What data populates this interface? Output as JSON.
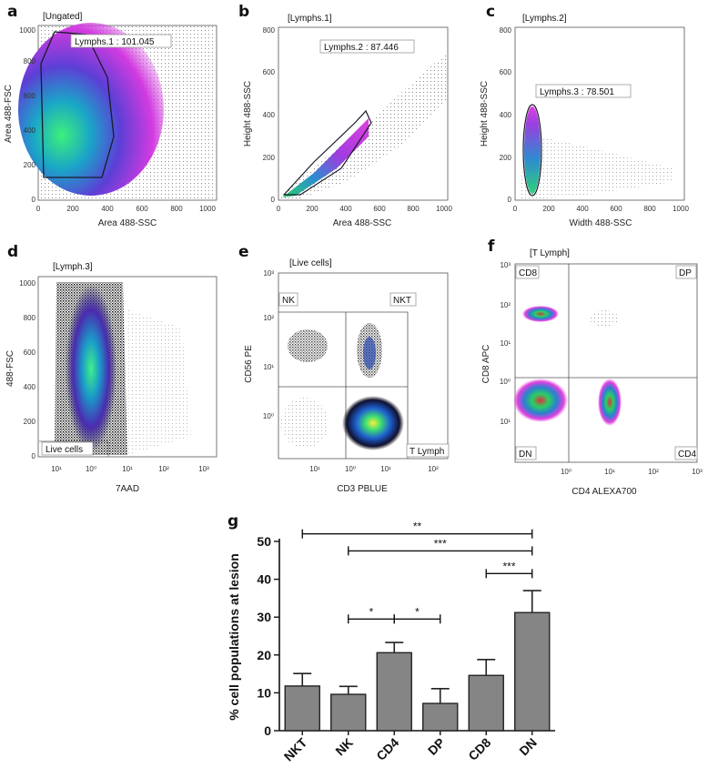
{
  "panels": {
    "a": {
      "letter": "a",
      "header": "[Ungated]",
      "gate_label": "Lymphs.1 : 101.045",
      "xlabel": "Area 488-SSC",
      "ylabel": "Area 488-FSC",
      "xticks": [
        "0",
        "200",
        "400",
        "600",
        "800",
        "1000"
      ],
      "yticks": [
        "0",
        "200",
        "400",
        "600",
        "800",
        "1000"
      ]
    },
    "b": {
      "letter": "b",
      "header": "[Lymphs.1]",
      "gate_label": "Lymphs.2 : 87.446",
      "xlabel": "Area 488-SSC",
      "ylabel": "Height 488-SSC",
      "xticks": [
        "0",
        "200",
        "400",
        "600",
        "800",
        "1000"
      ],
      "yticks": [
        "0",
        "200",
        "400",
        "600",
        "800"
      ]
    },
    "c": {
      "letter": "c",
      "header": "[Lymphs.2]",
      "gate_label": "Lymphs.3 : 78.501",
      "xlabel": "Width 488-SSC",
      "ylabel": "Height 488-SSC",
      "xticks": [
        "0",
        "200",
        "400",
        "600",
        "800",
        "1000"
      ],
      "yticks": [
        "0",
        "200",
        "400",
        "600",
        "800"
      ]
    },
    "d": {
      "letter": "d",
      "header": "[Lymph.3]",
      "gate_label": "Live cells",
      "xlabel": "7AAD",
      "ylabel": "488-FSC",
      "xticks": [
        "10¹",
        "10²",
        "10³"
      ],
      "xticks_left": [
        "10¹",
        "10⁰"
      ],
      "yticks": [
        "0",
        "200",
        "400",
        "600",
        "800",
        "1000"
      ]
    },
    "e": {
      "letter": "e",
      "header": "[Live cells]",
      "xlabel": "CD3 PBLUE",
      "ylabel": "CD56 PE",
      "quadrants": [
        "NK",
        "NKT",
        "T Lymph"
      ],
      "xticks": [
        "10¹",
        "10⁰",
        "10¹",
        "10²"
      ],
      "yticks": [
        "10³",
        "10²",
        "10¹",
        "10⁰"
      ]
    },
    "f": {
      "letter": "f",
      "header": "[T Lymph]",
      "xlabel": "CD4 ALEXA700",
      "ylabel": "CD8 APC",
      "quadrants": [
        "CD8",
        "DP",
        "DN",
        "CD4"
      ],
      "xticks": [
        "10⁰",
        "10¹",
        "10²",
        "10³"
      ],
      "yticks": [
        "10³",
        "10²",
        "10¹",
        "10⁰",
        "10¹"
      ]
    }
  },
  "chart_data": {
    "letter": "g",
    "type": "bar",
    "categories": [
      "NKT",
      "NK",
      "CD4",
      "DP",
      "CD8",
      "DN"
    ],
    "values": [
      11.8,
      9.6,
      20.6,
      7.2,
      14.6,
      31.2
    ],
    "errors": [
      3.3,
      2.1,
      2.7,
      3.9,
      4.2,
      5.8
    ],
    "ylabel": "% cell populations at lesion",
    "ylim": [
      0,
      50
    ],
    "yticks": [
      "0",
      "10",
      "20",
      "30",
      "40",
      "50"
    ],
    "significance": [
      {
        "from": "NKT",
        "to": "DN",
        "label": "**",
        "y": 52
      },
      {
        "from": "NK",
        "to": "DN",
        "label": "***",
        "y": 47.5
      },
      {
        "from": "CD8",
        "to": "DN",
        "label": "***",
        "y": 41.5
      },
      {
        "from": "NK",
        "to": "CD4",
        "label": "*",
        "y": 29.5
      },
      {
        "from": "CD4",
        "to": "DP",
        "label": "*",
        "y": 29.5
      }
    ],
    "bar_color": "#858585"
  }
}
